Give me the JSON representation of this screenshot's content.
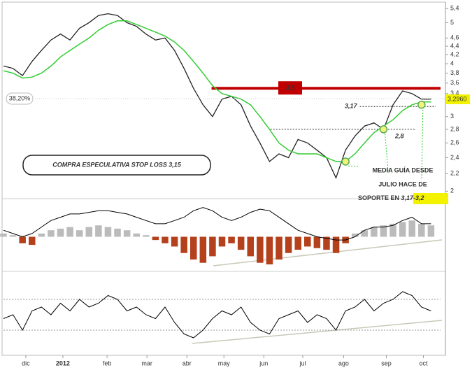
{
  "chart_data": {
    "type": "line",
    "log_scale": true,
    "xlim": [
      0,
      46
    ],
    "ylim": [
      1.95,
      5.55
    ],
    "yticks": [
      {
        "value": 5.4,
        "label": "5,4"
      },
      5,
      {
        "value": 4.6,
        "label": "4,6"
      },
      {
        "value": 4.4,
        "label": "4,4"
      },
      {
        "value": 4.2,
        "label": "4,2"
      },
      4,
      {
        "value": 3.8,
        "label": "3,8"
      },
      {
        "value": 3.6,
        "label": "3,6"
      },
      {
        "value": 3.4,
        "label": "3,4"
      },
      3,
      {
        "value": 2.8,
        "label": "2,8"
      },
      {
        "value": 2.6,
        "label": "2,6"
      },
      {
        "value": 2.4,
        "label": "2,4"
      },
      {
        "value": 2.2,
        "label": "2,2"
      },
      2
    ],
    "xticks": [
      {
        "value": 2.35,
        "label": "dic"
      },
      {
        "value": 6.25,
        "label": "2012"
      },
      {
        "value": 10.9,
        "label": "feb"
      },
      {
        "value": 15.1,
        "label": "mar"
      },
      {
        "value": 19.3,
        "label": "abr"
      },
      {
        "value": 23.2,
        "label": "may"
      },
      {
        "value": 27.4,
        "label": "jun"
      },
      {
        "value": 31.5,
        "label": "jul"
      },
      {
        "value": 35.8,
        "label": "ago"
      },
      {
        "value": 40.3,
        "label": "sep"
      },
      {
        "value": 44.2,
        "label": "oct"
      }
    ],
    "x": [
      0,
      1,
      2,
      3,
      4,
      5,
      6,
      7,
      8,
      9,
      10,
      11,
      12,
      13,
      14,
      15,
      16,
      17,
      18,
      19,
      20,
      21,
      22,
      23,
      24,
      25,
      26,
      27,
      28,
      29,
      30,
      31,
      32,
      33,
      34,
      35,
      36,
      37,
      38,
      39,
      40,
      41,
      42,
      43,
      44,
      45
    ],
    "series": [
      {
        "name": "precio",
        "color": "#222222",
        "values": [
          3.95,
          3.9,
          3.75,
          4.05,
          4.3,
          4.55,
          4.7,
          4.55,
          4.85,
          5.0,
          5.2,
          5.25,
          5.2,
          5.0,
          4.9,
          4.7,
          4.55,
          4.6,
          4.3,
          3.9,
          3.5,
          3.2,
          3.0,
          3.3,
          3.35,
          3.2,
          2.85,
          2.6,
          2.35,
          2.45,
          2.4,
          2.65,
          2.6,
          2.5,
          2.4,
          2.15,
          2.5,
          2.7,
          2.85,
          2.9,
          2.8,
          3.2,
          3.45,
          3.4,
          3.3,
          3.3
        ]
      },
      {
        "name": "media",
        "color": "#33cc33",
        "values": [
          3.85,
          3.8,
          3.7,
          3.72,
          3.8,
          3.95,
          4.15,
          4.3,
          4.45,
          4.6,
          4.8,
          4.95,
          5.05,
          5.05,
          4.95,
          4.85,
          4.75,
          4.65,
          4.5,
          4.3,
          4.05,
          3.8,
          3.55,
          3.4,
          3.35,
          3.3,
          3.2,
          3.0,
          2.8,
          2.6,
          2.5,
          2.45,
          2.45,
          2.45,
          2.4,
          2.35,
          2.35,
          2.45,
          2.6,
          2.75,
          2.85,
          2.95,
          3.1,
          3.2,
          3.25,
          3.25
        ]
      }
    ],
    "levels": [
      {
        "value": 3.5,
        "label": "3,5",
        "color": "#c00000",
        "from": 21.9
      },
      {
        "value": 3.17,
        "label": "3,17",
        "color": "#333333",
        "from": 37.5
      },
      {
        "value": 2.8,
        "label": "2,8",
        "color": "#333333",
        "from": 28.1
      }
    ],
    "supports": [
      {
        "x": 36,
        "value": 2.35
      },
      {
        "x": 40,
        "value": 2.8
      },
      {
        "x": 44,
        "value": 3.2
      }
    ],
    "fib_label": "38,20%",
    "last_value": {
      "value": 3.296,
      "label": "3,2960"
    },
    "annotations": [
      "COMPRA ESPECULATIVA STOP LOSS 3,15",
      "MEDIA GUÍA DESDE",
      "JULIO HACE DE",
      "SOPORTE EN ",
      "3,17-3,2"
    ],
    "macd": {
      "ylim": [
        -1,
        1
      ],
      "histogram": [
        0.1,
        0.05,
        -0.2,
        -0.25,
        0.1,
        0.2,
        0.25,
        0.3,
        0.2,
        0.3,
        0.35,
        0.3,
        0.25,
        0.2,
        0.1,
        0.05,
        -0.1,
        -0.2,
        -0.3,
        -0.5,
        -0.7,
        -0.8,
        -0.6,
        -0.3,
        -0.2,
        -0.4,
        -0.6,
        -0.8,
        -0.85,
        -0.7,
        -0.5,
        -0.4,
        -0.3,
        -0.35,
        -0.4,
        -0.5,
        -0.2,
        0.1,
        0.2,
        0.3,
        0.35,
        0.4,
        0.45,
        0.5,
        0.4,
        0.35
      ],
      "line": [
        0.2,
        0.1,
        0,
        0.1,
        0.3,
        0.5,
        0.6,
        0.7,
        0.7,
        0.75,
        0.8,
        0.8,
        0.75,
        0.7,
        0.6,
        0.5,
        0.4,
        0.4,
        0.5,
        0.6,
        0.8,
        0.9,
        0.8,
        0.6,
        0.5,
        0.6,
        0.75,
        0.85,
        0.8,
        0.6,
        0.4,
        0.2,
        0.1,
        0,
        -0.05,
        -0.1,
        -0.1,
        0,
        0.2,
        0.3,
        0.3,
        0.35,
        0.5,
        0.6,
        0.4,
        0.4
      ],
      "positive_color": "#bbbbbb",
      "negative_color": "#b5401c"
    },
    "oscillator": {
      "ylim": [
        0,
        100
      ],
      "levels": [
        70,
        30
      ],
      "values": [
        45,
        50,
        30,
        55,
        60,
        50,
        65,
        55,
        70,
        60,
        65,
        75,
        70,
        55,
        60,
        50,
        45,
        60,
        40,
        25,
        20,
        30,
        45,
        55,
        50,
        60,
        40,
        30,
        25,
        45,
        50,
        55,
        40,
        50,
        45,
        30,
        55,
        60,
        70,
        55,
        65,
        70,
        80,
        75,
        60,
        55
      ]
    }
  }
}
